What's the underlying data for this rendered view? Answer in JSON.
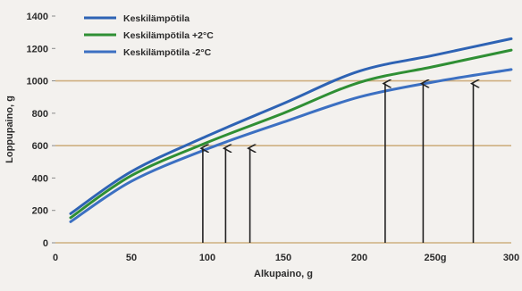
{
  "chart_data": {
    "type": "line",
    "title": "",
    "xlabel": "Alkupaino, g",
    "ylabel": "Loppupaino, g",
    "xlim": [
      0,
      300
    ],
    "ylim": [
      0,
      1400
    ],
    "x_ticks": [
      0,
      50,
      100,
      150,
      200,
      250,
      300
    ],
    "x_tick_labels": [
      "0",
      "50",
      "100",
      "150",
      "200",
      "250g",
      "300"
    ],
    "y_ticks": [
      0,
      200,
      400,
      600,
      800,
      1000,
      1200,
      1400
    ],
    "y_tick_labels": [
      "0",
      "200",
      "400",
      "600",
      "800",
      "1000",
      "1200",
      "1400"
    ],
    "reference_lines_y": [
      0,
      600,
      1000
    ],
    "legend_position": "top-left",
    "series": [
      {
        "name": "Keskilämpötila",
        "color": "#2e63b4",
        "x": [
          10,
          50,
          100,
          150,
          200,
          250,
          300
        ],
        "y": [
          180,
          440,
          660,
          860,
          1060,
          1160,
          1260
        ]
      },
      {
        "name": "Keskilämpötila  +2°C",
        "color": "#2f8f34",
        "x": [
          10,
          50,
          100,
          150,
          200,
          250,
          300
        ],
        "y": [
          155,
          415,
          620,
          800,
          990,
          1090,
          1190
        ]
      },
      {
        "name": "Keskilämpötila  -2°C",
        "color": "#3c70c2",
        "x": [
          10,
          50,
          100,
          150,
          200,
          250,
          300
        ],
        "y": [
          130,
          380,
          580,
          745,
          900,
          995,
          1070
        ]
      }
    ],
    "arrows": [
      {
        "x": 97,
        "y_end": 600
      },
      {
        "x": 112,
        "y_end": 600
      },
      {
        "x": 128,
        "y_end": 600
      },
      {
        "x": 217,
        "y_end": 1000
      },
      {
        "x": 242,
        "y_end": 1000
      },
      {
        "x": 275,
        "y_end": 1000
      }
    ]
  }
}
